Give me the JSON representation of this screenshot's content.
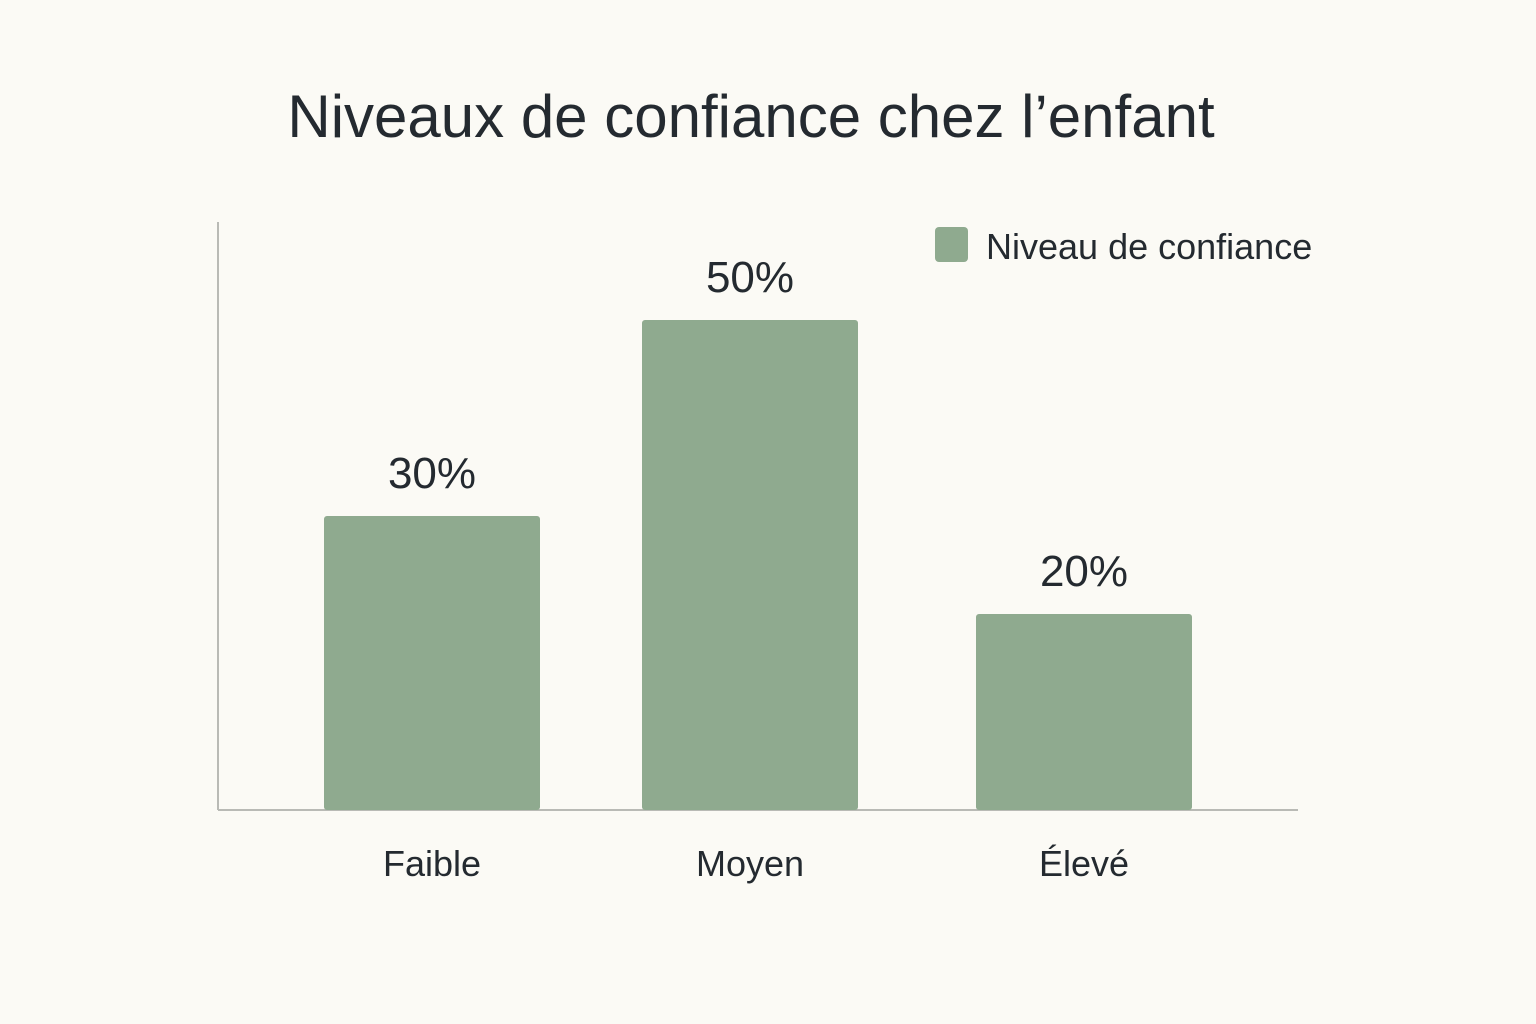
{
  "chart_data": {
    "type": "bar",
    "title": "Niveaux de confiance chez l’enfant",
    "categories": [
      "Faible",
      "Moyen",
      "Élevé"
    ],
    "series": [
      {
        "name": "Niveau de confiance",
        "values": [
          30,
          50,
          20
        ],
        "labels": [
          "30%",
          "50%",
          "20%"
        ],
        "color": "#8faa8f"
      }
    ],
    "ylim": [
      0,
      60
    ],
    "grid": false,
    "legend": "top-right"
  },
  "colors": {
    "background": "#fbfaf5",
    "axis": "#b9bab5",
    "text": "#242a30"
  }
}
